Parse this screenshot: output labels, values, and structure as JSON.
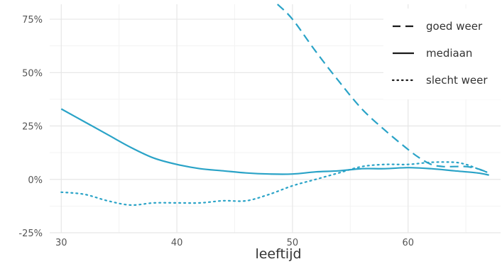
{
  "chart_data": {
    "type": "line",
    "title": "",
    "xlabel": "leeftijd",
    "ylabel": "",
    "xlim": [
      29,
      68
    ],
    "ylim": [
      -25,
      82
    ],
    "x_ticks": [
      30,
      40,
      50,
      60
    ],
    "x_tick_labels": [
      "30",
      "40",
      "50",
      "60"
    ],
    "y_ticks": [
      -25,
      0,
      25,
      50,
      75
    ],
    "y_tick_labels": [
      "-25%",
      "0%",
      "25%",
      "50%",
      "75%"
    ],
    "grid": true,
    "legend_position": "top-right",
    "color": "#2aa3c7",
    "series": [
      {
        "name": "goed weer",
        "style": "dashed",
        "x": [
          48.7,
          50,
          52,
          54,
          56,
          58,
          60,
          61,
          62,
          63,
          64,
          65,
          66,
          67
        ],
        "y": [
          82,
          75,
          60,
          46,
          33,
          23,
          14,
          10,
          7,
          6,
          6,
          6,
          5,
          3
        ]
      },
      {
        "name": "mediaan",
        "style": "solid",
        "x": [
          30,
          32,
          34,
          36,
          38,
          40,
          42,
          44,
          46,
          48,
          50,
          52,
          54,
          56,
          58,
          60,
          62,
          64,
          66,
          67
        ],
        "y": [
          33,
          27,
          21,
          15,
          10,
          7,
          5,
          4,
          3,
          2.5,
          2.5,
          3.5,
          4,
          5,
          5,
          5.5,
          5,
          4,
          3,
          2
        ]
      },
      {
        "name": "slecht weer",
        "style": "dotted",
        "x": [
          30,
          32,
          34,
          36,
          38,
          40,
          42,
          44,
          46,
          48,
          50,
          52,
          54,
          56,
          58,
          60,
          62,
          64,
          65,
          66,
          67
        ],
        "y": [
          -6,
          -7,
          -10,
          -12,
          -11,
          -11,
          -11,
          -10,
          -10,
          -7,
          -3,
          0,
          3,
          6,
          7,
          7,
          8,
          8,
          7,
          5,
          3
        ]
      }
    ]
  }
}
